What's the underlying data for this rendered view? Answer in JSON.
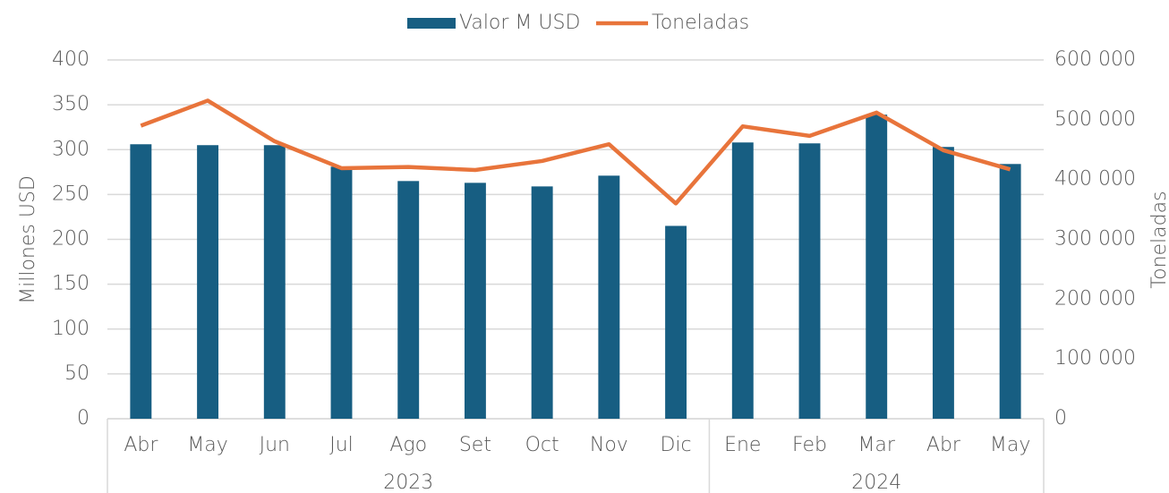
{
  "chart_data": {
    "type": "bar_line",
    "categories": [
      "Abr",
      "May",
      "Jun",
      "Jul",
      "Ago",
      "Set",
      "Oct",
      "Nov",
      "Dic",
      "Ene",
      "Feb",
      "Mar",
      "Abr",
      "May"
    ],
    "groups": [
      {
        "name": "2023",
        "count": 9
      },
      {
        "name": "2024",
        "count": 5
      }
    ],
    "series": [
      {
        "name": "Valor M USD",
        "type": "bar",
        "color": "#175e82",
        "values": [
          306,
          305,
          305,
          281,
          265,
          263,
          259,
          271,
          215,
          308,
          307,
          339,
          303,
          284
        ]
      },
      {
        "name": "Toneladas",
        "type": "line",
        "axis": "y2",
        "color": "#e8743b",
        "values": [
          490000,
          532000,
          464000,
          419000,
          421000,
          416000,
          431000,
          459000,
          360000,
          489000,
          473000,
          512000,
          449000,
          417000
        ]
      }
    ],
    "ylabel": "Millones USD",
    "y2label": "Toneladas",
    "ylim": [
      0,
      400
    ],
    "yticks": [
      0,
      50,
      100,
      150,
      200,
      250,
      300,
      350,
      400
    ],
    "y2lim": [
      0,
      600000
    ],
    "y2ticks": [
      0,
      {
        "value": 100000,
        "label": "100 000"
      },
      {
        "value": 200000,
        "label": "200 000"
      },
      {
        "value": 300000,
        "label": "300 000"
      },
      {
        "value": 400000,
        "label": "400 000"
      },
      {
        "value": 500000,
        "label": "500 000"
      },
      {
        "value": 600000,
        "label": "600 000"
      }
    ],
    "grid": true,
    "legend": "top"
  }
}
